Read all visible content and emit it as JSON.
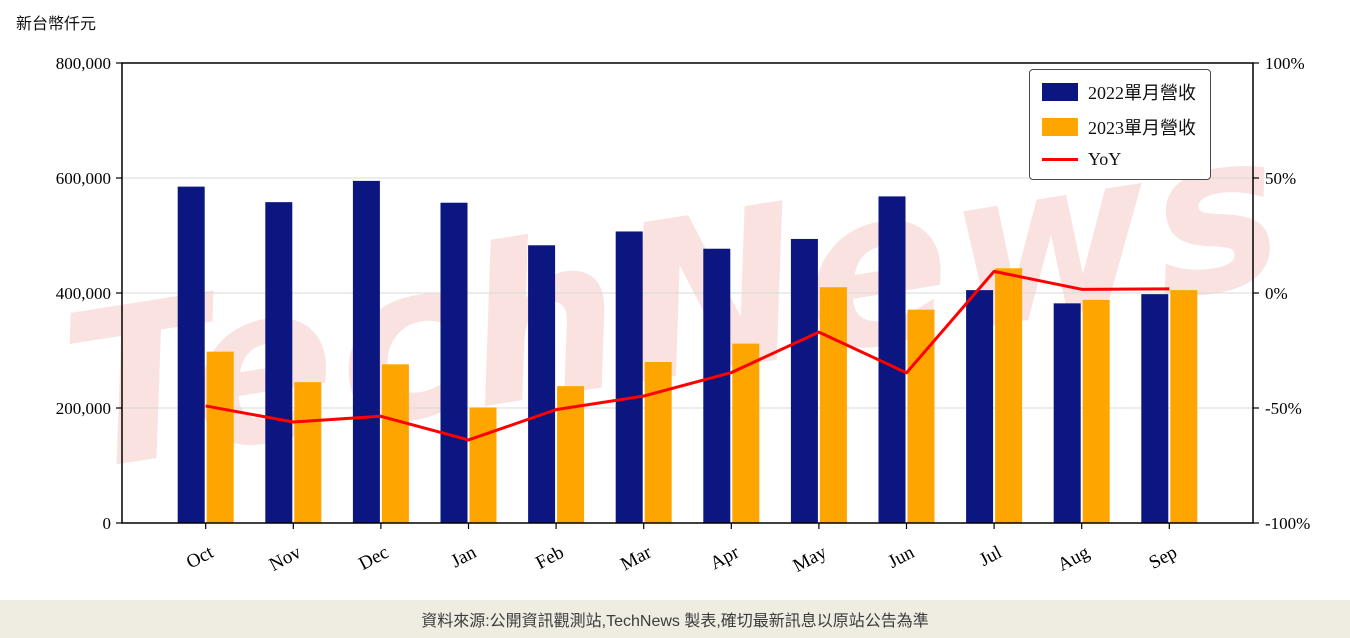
{
  "watermark": "TechNews",
  "footer": {
    "source_text": "資料來源:公開資訊觀測站,TechNews 製表,確切最新訊息以原站公告為準"
  },
  "chart_data": {
    "type": "bar+line",
    "title": "",
    "categories": [
      "Oct",
      "Nov",
      "Dec",
      "Jan",
      "Feb",
      "Mar",
      "Apr",
      "May",
      "Jun",
      "Jul",
      "Aug",
      "Sep"
    ],
    "series": [
      {
        "name": "2022單月營收",
        "type": "bar",
        "axis": "left",
        "color": "#0b1680",
        "values": [
          585000,
          558000,
          595000,
          557000,
          483000,
          507000,
          477000,
          494000,
          568000,
          405000,
          382000,
          398000
        ]
      },
      {
        "name": "2023單月營收",
        "type": "bar",
        "axis": "left",
        "color": "#ffa500",
        "values": [
          298000,
          245000,
          276000,
          201000,
          238000,
          280000,
          312000,
          410000,
          371000,
          443000,
          388000,
          405000
        ]
      },
      {
        "name": "YoY",
        "type": "line",
        "axis": "right",
        "color": "#ff0000",
        "values": [
          -49.1,
          -56.1,
          -53.6,
          -63.9,
          -50.7,
          -44.8,
          -34.6,
          -17.0,
          -34.7,
          9.4,
          1.6,
          1.8
        ]
      }
    ],
    "left_axis": {
      "label": "新台幣仟元",
      "min": 0,
      "max": 800000,
      "ticks": [
        {
          "value": 0,
          "label": "0"
        },
        {
          "value": 200000,
          "label": "200,000"
        },
        {
          "value": 400000,
          "label": "400,000"
        },
        {
          "value": 600000,
          "label": "600,000"
        },
        {
          "value": 800000,
          "label": "800,000"
        }
      ]
    },
    "right_axis": {
      "min": -100,
      "max": 100,
      "ticks": [
        {
          "value": -100,
          "label": "-100%"
        },
        {
          "value": -50,
          "label": "-50%"
        },
        {
          "value": 0,
          "label": "0%"
        },
        {
          "value": 50,
          "label": "50%"
        },
        {
          "value": 100,
          "label": "100%"
        }
      ]
    },
    "legend_position": "top-right",
    "grid": true
  }
}
